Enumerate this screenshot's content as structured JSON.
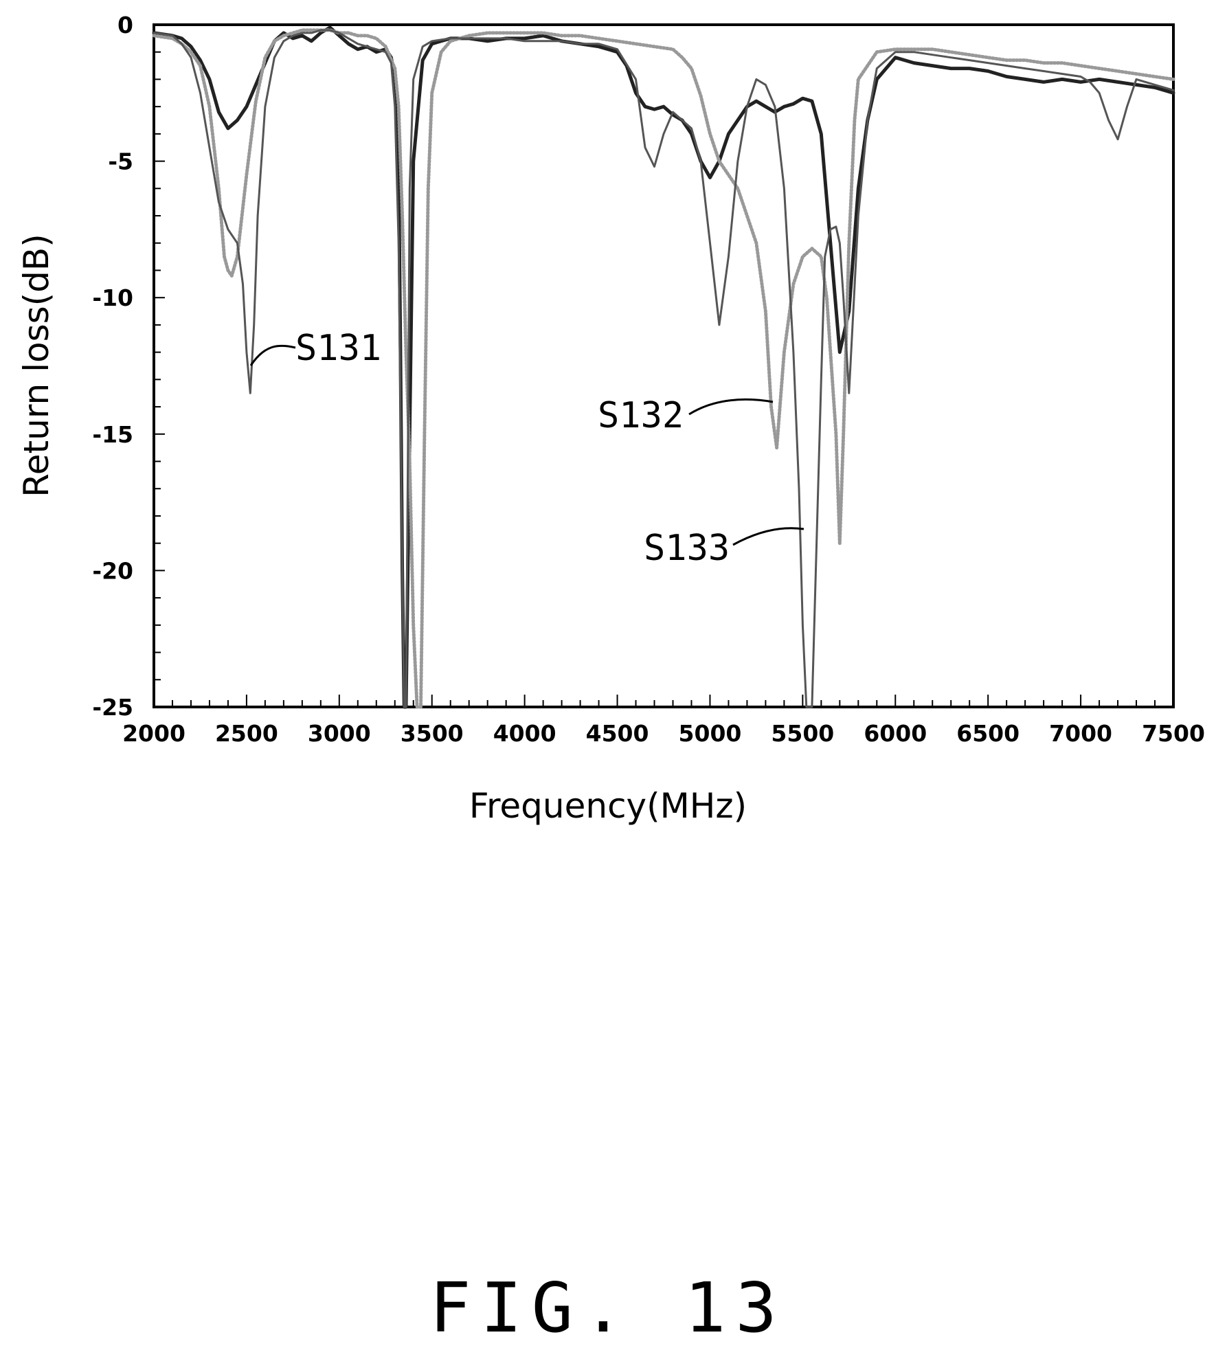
{
  "figure": {
    "caption": "FIG. 13"
  },
  "chart_data": {
    "type": "line",
    "title": "",
    "xlabel": "Frequency(MHz)",
    "ylabel": "Return loss(dB)",
    "xlim": [
      2000,
      7500
    ],
    "ylim": [
      -25,
      0
    ],
    "xticks": [
      "2000",
      "2500",
      "3000",
      "3500",
      "4000",
      "4500",
      "5000",
      "5500",
      "6000",
      "6500",
      "7000",
      "7500"
    ],
    "yticks": [
      "0",
      "-5",
      "-10",
      "-15",
      "-20",
      "-25"
    ],
    "grid": false,
    "legend": "none",
    "series": [
      {
        "name": "S131",
        "color": "#222222",
        "style": "solid",
        "x": [
          2000,
          2100,
          2150,
          2200,
          2250,
          2300,
          2350,
          2400,
          2450,
          2500,
          2550,
          2600,
          2650,
          2700,
          2750,
          2800,
          2850,
          2900,
          2950,
          3000,
          3050,
          3100,
          3150,
          3200,
          3250,
          3280,
          3300,
          3320,
          3330,
          3340,
          3350,
          3360,
          3380,
          3400,
          3450,
          3500,
          3600,
          3700,
          3800,
          3900,
          4000,
          4100,
          4200,
          4300,
          4400,
          4500,
          4550,
          4600,
          4650,
          4700,
          4750,
          4800,
          4850,
          4900,
          4950,
          5000,
          5050,
          5100,
          5150,
          5200,
          5250,
          5300,
          5350,
          5400,
          5450,
          5500,
          5550,
          5600,
          5650,
          5700,
          5750,
          5800,
          5850,
          5900,
          6000,
          6100,
          6200,
          6300,
          6400,
          6500,
          6600,
          6700,
          6800,
          6900,
          7000,
          7100,
          7200,
          7300,
          7400,
          7500
        ],
        "y": [
          -0.3,
          -0.4,
          -0.5,
          -0.8,
          -1.3,
          -2.0,
          -3.2,
          -3.8,
          -3.5,
          -3.0,
          -2.2,
          -1.4,
          -0.6,
          -0.3,
          -0.5,
          -0.4,
          -0.6,
          -0.3,
          -0.1,
          -0.4,
          -0.7,
          -0.9,
          -0.8,
          -1.0,
          -0.9,
          -1.2,
          -2.0,
          -5.0,
          -12.0,
          -20.0,
          -25.0,
          -25.0,
          -15.0,
          -5.0,
          -1.3,
          -0.7,
          -0.5,
          -0.5,
          -0.6,
          -0.5,
          -0.5,
          -0.4,
          -0.6,
          -0.7,
          -0.8,
          -1.0,
          -1.5,
          -2.5,
          -3.0,
          -3.1,
          -3.0,
          -3.3,
          -3.5,
          -4.0,
          -5.0,
          -5.6,
          -5.0,
          -4.0,
          -3.5,
          -3.0,
          -2.8,
          -3.0,
          -3.2,
          -3.0,
          -2.9,
          -2.7,
          -2.8,
          -4.0,
          -8.0,
          -12.0,
          -10.5,
          -6.0,
          -3.5,
          -2.0,
          -1.2,
          -1.4,
          -1.5,
          -1.6,
          -1.6,
          -1.7,
          -1.9,
          -2.0,
          -2.1,
          -2.0,
          -2.1,
          -2.0,
          -2.1,
          -2.2,
          -2.3,
          -2.5
        ]
      },
      {
        "name": "S132",
        "color": "#999999",
        "style": "dotted",
        "x": [
          2000,
          2100,
          2150,
          2200,
          2250,
          2300,
          2350,
          2380,
          2400,
          2420,
          2450,
          2500,
          2550,
          2600,
          2650,
          2700,
          2750,
          2800,
          2850,
          2900,
          2950,
          3000,
          3050,
          3100,
          3150,
          3200,
          3250,
          3300,
          3320,
          3340,
          3360,
          3380,
          3400,
          3420,
          3440,
          3460,
          3480,
          3500,
          3550,
          3600,
          3700,
          3800,
          3900,
          4000,
          4100,
          4200,
          4300,
          4400,
          4500,
          4600,
          4700,
          4800,
          4850,
          4900,
          4950,
          5000,
          5050,
          5100,
          5150,
          5200,
          5250,
          5300,
          5330,
          5360,
          5400,
          5450,
          5500,
          5550,
          5600,
          5630,
          5650,
          5680,
          5700,
          5720,
          5750,
          5780,
          5800,
          5900,
          6000,
          6100,
          6200,
          6300,
          6400,
          6500,
          6600,
          6700,
          6800,
          6900,
          7000,
          7100,
          7200,
          7300,
          7400,
          7500
        ],
        "y": [
          -0.4,
          -0.5,
          -0.7,
          -1.0,
          -1.5,
          -3.0,
          -6.0,
          -8.5,
          -9.0,
          -9.2,
          -8.5,
          -5.5,
          -2.8,
          -1.2,
          -0.6,
          -0.4,
          -0.3,
          -0.2,
          -0.2,
          -0.2,
          -0.2,
          -0.3,
          -0.3,
          -0.4,
          -0.4,
          -0.5,
          -0.8,
          -1.6,
          -3.0,
          -7.0,
          -12.0,
          -16.0,
          -22.0,
          -25.0,
          -25.0,
          -15.0,
          -6.0,
          -2.5,
          -1.0,
          -0.6,
          -0.4,
          -0.3,
          -0.3,
          -0.3,
          -0.3,
          -0.4,
          -0.4,
          -0.5,
          -0.6,
          -0.7,
          -0.8,
          -0.9,
          -1.2,
          -1.6,
          -2.6,
          -4.0,
          -5.0,
          -5.5,
          -6.0,
          -7.0,
          -8.0,
          -10.5,
          -14.0,
          -15.5,
          -12.0,
          -9.5,
          -8.5,
          -8.2,
          -8.5,
          -10.0,
          -12.0,
          -15.0,
          -19.0,
          -15.0,
          -8.0,
          -3.5,
          -2.0,
          -1.0,
          -0.9,
          -0.9,
          -0.9,
          -1.0,
          -1.1,
          -1.2,
          -1.3,
          -1.3,
          -1.4,
          -1.4,
          -1.5,
          -1.6,
          -1.7,
          -1.8,
          -1.9,
          -2.0
        ]
      },
      {
        "name": "S133",
        "color": "#555555",
        "style": "solid",
        "x": [
          2000,
          2100,
          2150,
          2200,
          2250,
          2300,
          2350,
          2400,
          2450,
          2480,
          2500,
          2520,
          2540,
          2560,
          2600,
          2650,
          2700,
          2750,
          2800,
          2850,
          2900,
          2950,
          3000,
          3050,
          3100,
          3150,
          3200,
          3250,
          3280,
          3300,
          3320,
          3330,
          3340,
          3350,
          3360,
          3370,
          3380,
          3400,
          3450,
          3500,
          3600,
          3700,
          3800,
          3900,
          4000,
          4100,
          4200,
          4300,
          4400,
          4500,
          4600,
          4650,
          4700,
          4750,
          4800,
          4850,
          4900,
          4950,
          5000,
          5050,
          5100,
          5150,
          5200,
          5250,
          5300,
          5350,
          5400,
          5450,
          5480,
          5500,
          5520,
          5550,
          5600,
          5620,
          5650,
          5680,
          5700,
          5720,
          5750,
          5800,
          5850,
          5900,
          6000,
          6100,
          6200,
          6300,
          6400,
          6500,
          6600,
          6700,
          6800,
          6900,
          7000,
          7050,
          7100,
          7150,
          7200,
          7250,
          7300,
          7400,
          7500
        ],
        "y": [
          -0.3,
          -0.4,
          -0.7,
          -1.2,
          -2.5,
          -4.5,
          -6.5,
          -7.5,
          -8.0,
          -9.5,
          -12.0,
          -13.5,
          -11.0,
          -7.0,
          -3.0,
          -1.2,
          -0.6,
          -0.4,
          -0.3,
          -0.3,
          -0.2,
          -0.2,
          -0.3,
          -0.5,
          -0.7,
          -0.8,
          -0.9,
          -1.0,
          -1.4,
          -3.0,
          -8.0,
          -14.0,
          -20.0,
          -25.0,
          -25.0,
          -16.0,
          -6.0,
          -2.0,
          -0.8,
          -0.6,
          -0.5,
          -0.5,
          -0.5,
          -0.5,
          -0.6,
          -0.6,
          -0.6,
          -0.7,
          -0.7,
          -0.9,
          -2.0,
          -4.5,
          -5.2,
          -4.0,
          -3.2,
          -3.5,
          -3.8,
          -5.0,
          -8.0,
          -11.0,
          -8.5,
          -5.0,
          -3.0,
          -2.0,
          -2.2,
          -3.0,
          -6.0,
          -12.0,
          -17.0,
          -22.0,
          -25.0,
          -25.0,
          -13.0,
          -8.5,
          -7.5,
          -7.4,
          -8.0,
          -10.0,
          -13.5,
          -7.0,
          -3.5,
          -1.6,
          -1.0,
          -1.0,
          -1.1,
          -1.2,
          -1.3,
          -1.4,
          -1.5,
          -1.6,
          -1.7,
          -1.8,
          -1.9,
          -2.1,
          -2.5,
          -3.5,
          -4.2,
          -3.0,
          -2.0,
          -2.2,
          -2.4
        ]
      }
    ],
    "annotations": [
      {
        "label": "S131"
      },
      {
        "label": "S132"
      },
      {
        "label": "S133"
      }
    ]
  }
}
